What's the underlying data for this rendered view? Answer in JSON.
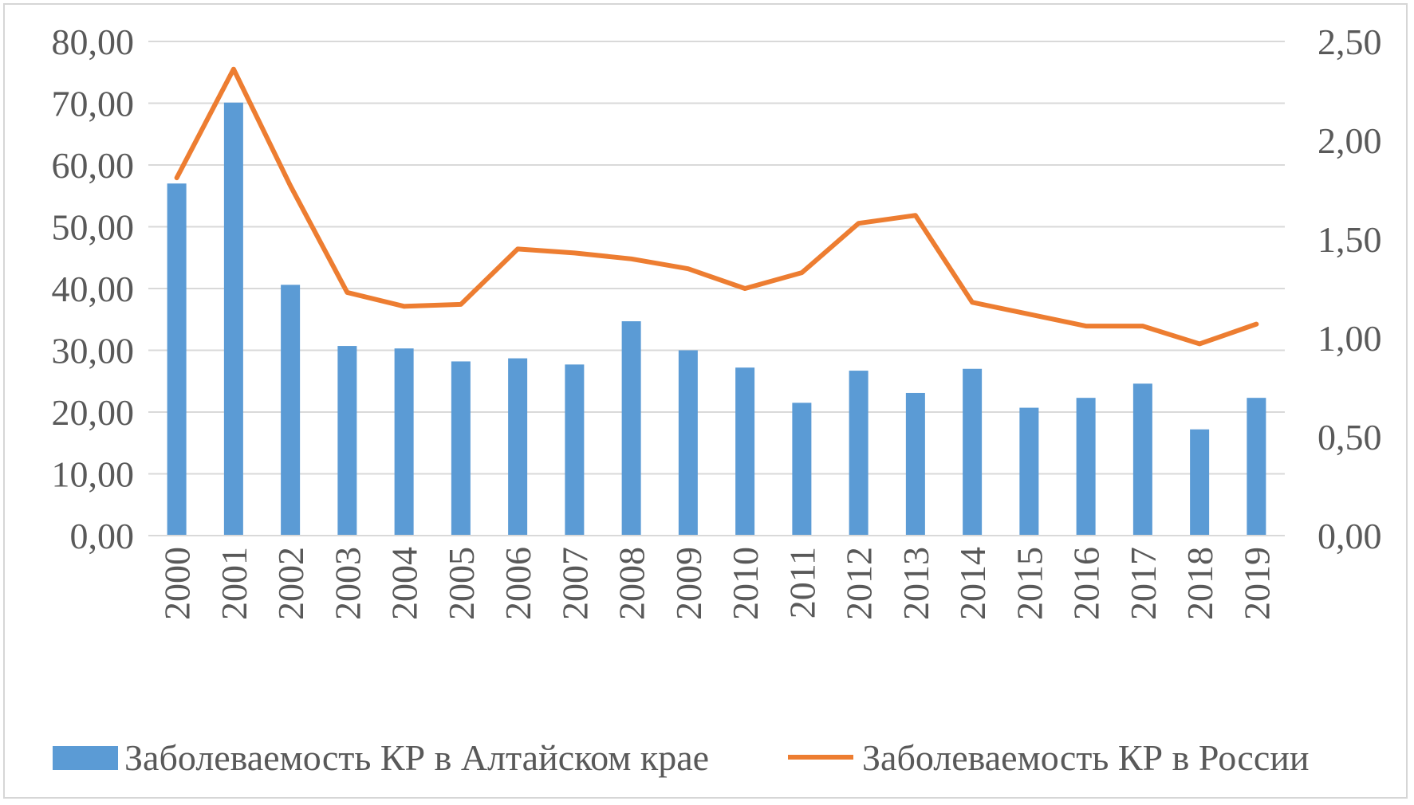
{
  "chart_data": {
    "type": "bar",
    "categories": [
      "2000",
      "2001",
      "2002",
      "2003",
      "2004",
      "2005",
      "2006",
      "2007",
      "2008",
      "2009",
      "2010",
      "2011",
      "2012",
      "2013",
      "2014",
      "2015",
      "2016",
      "2017",
      "2018",
      "2019"
    ],
    "series": [
      {
        "name": "Заболеваемость КР в Алтайском крае",
        "type": "bar",
        "axis": "left",
        "color": "#5B9BD5",
        "values": [
          57.0,
          70.1,
          40.6,
          30.7,
          30.3,
          28.2,
          28.7,
          27.7,
          34.7,
          30.0,
          27.2,
          21.5,
          26.7,
          23.1,
          27.0,
          20.7,
          22.3,
          24.6,
          17.2,
          22.3
        ]
      },
      {
        "name": "Заболеваемость КР в России",
        "type": "line",
        "axis": "right",
        "color": "#ED7D31",
        "values": [
          1.81,
          2.36,
          1.77,
          1.23,
          1.16,
          1.17,
          1.45,
          1.43,
          1.4,
          1.35,
          1.25,
          1.33,
          1.58,
          1.62,
          1.18,
          1.12,
          1.06,
          1.06,
          0.97,
          1.07
        ]
      }
    ],
    "left_axis": {
      "ylim": [
        0,
        80
      ],
      "ticks": [
        "0,00",
        "10,00",
        "20,00",
        "30,00",
        "40,00",
        "50,00",
        "60,00",
        "70,00",
        "80,00"
      ]
    },
    "right_axis": {
      "ylim": [
        0,
        2.5
      ],
      "ticks": [
        "0,00",
        "0,50",
        "1,00",
        "1,50",
        "2,00",
        "2,50"
      ]
    },
    "grid": true,
    "legend_position": "bottom",
    "title": "",
    "xlabel": "",
    "ylabel": ""
  }
}
